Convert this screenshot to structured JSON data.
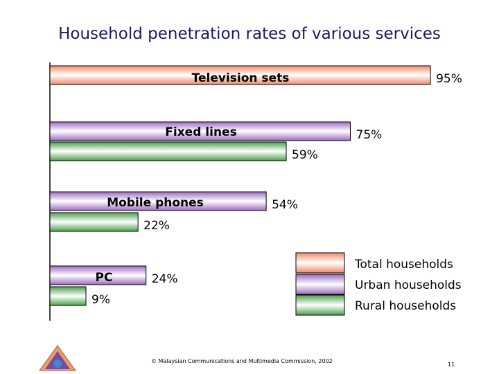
{
  "slide": {
    "title": "Household penetration rates of various services",
    "footer": "© Malaysian Communications and Multimedia Commission, 2002",
    "page_number": "11"
  },
  "colors": {
    "total": "#f08a6a",
    "urban": "#9b6bc0",
    "rural": "#4aa04a",
    "title": "#1a1a66"
  },
  "chart_data": {
    "type": "bar",
    "orientation": "horizontal",
    "title": "Household penetration rates of various services",
    "xlabel": "",
    "ylabel": "",
    "xlim": [
      0,
      100
    ],
    "grid": false,
    "legend_position": "bottom-right",
    "categories": [
      "Television sets",
      "Fixed lines",
      "Mobile phones",
      "PC"
    ],
    "series": [
      {
        "name": "Total households",
        "key": "total",
        "values": [
          95,
          null,
          null,
          null
        ],
        "labels": [
          "95%",
          null,
          null,
          null
        ]
      },
      {
        "name": "Urban households",
        "key": "urban",
        "values": [
          null,
          75,
          54,
          24
        ],
        "labels": [
          null,
          "75%",
          "54%",
          "24%"
        ]
      },
      {
        "name": "Rural households",
        "key": "rural",
        "values": [
          null,
          59,
          22,
          9
        ],
        "labels": [
          null,
          "59%",
          "22%",
          "9%"
        ]
      }
    ]
  }
}
